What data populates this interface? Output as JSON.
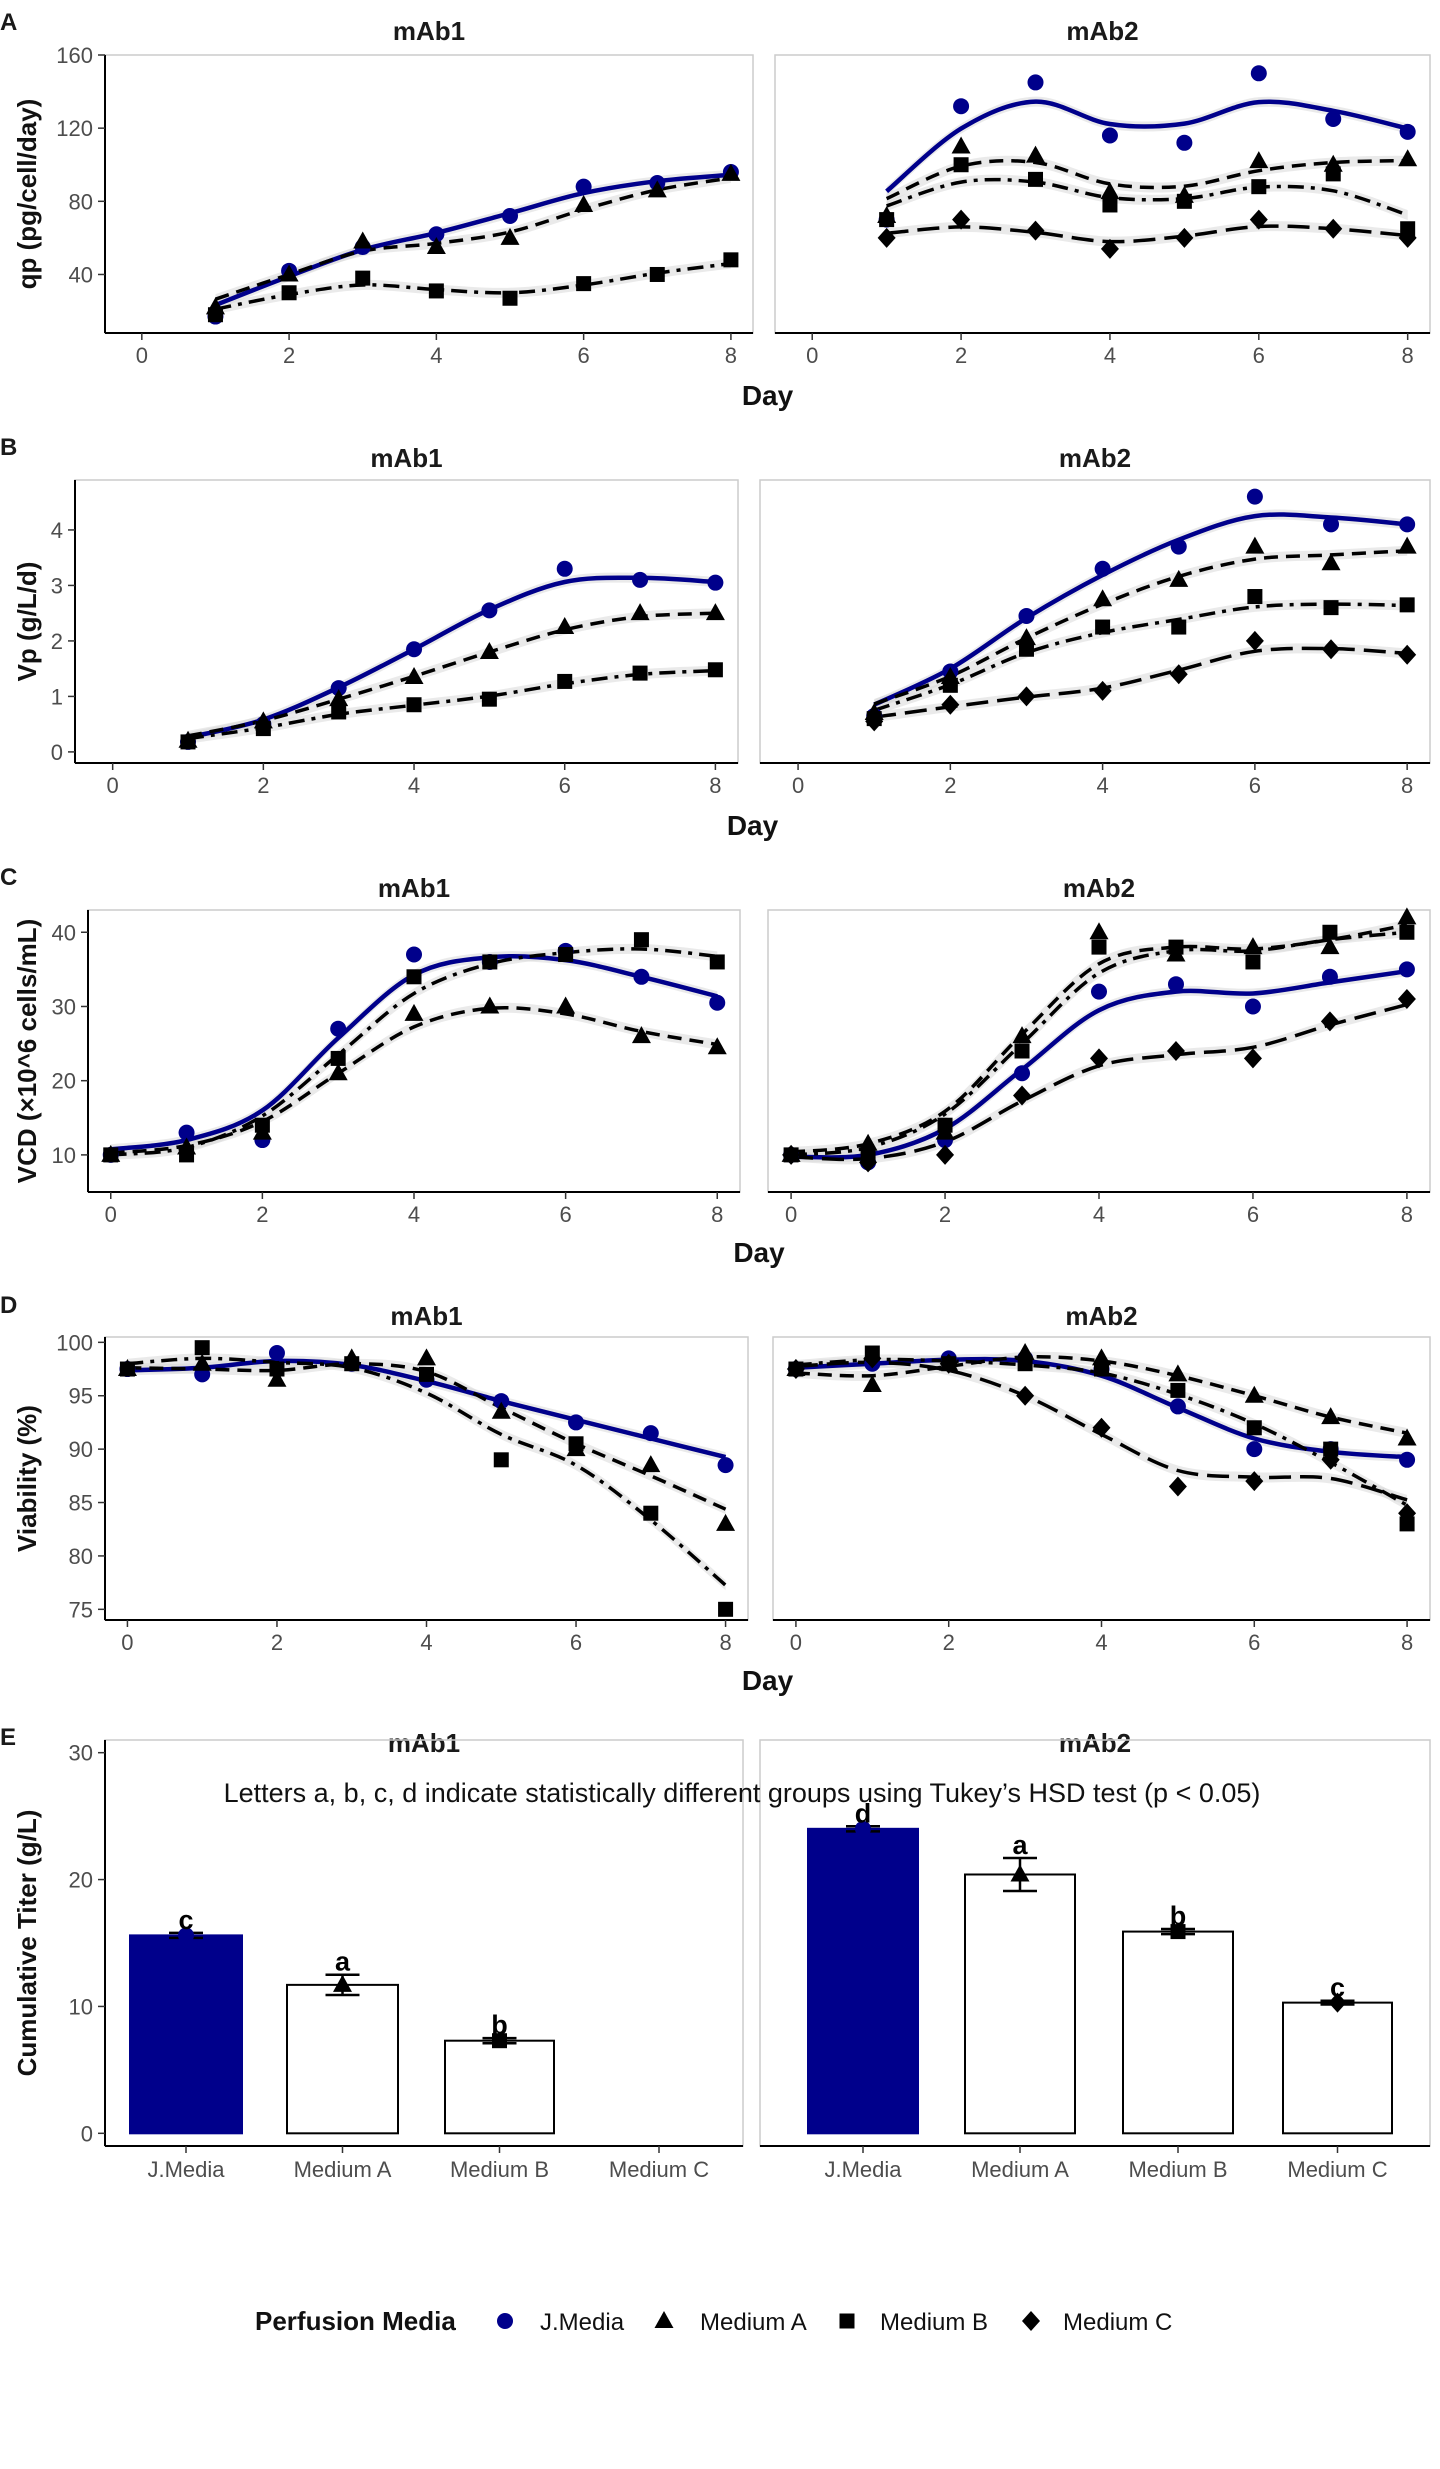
{
  "colors": {
    "jmedia": "#00008b",
    "other": "#000000",
    "ribbon": "#d9d9d9",
    "frame": "#cccccc"
  },
  "series_styles": [
    {
      "name": "J.Media",
      "shape": "circle",
      "line": "solid"
    },
    {
      "name": "Medium A",
      "shape": "triangle",
      "line": "dashed"
    },
    {
      "name": "Medium B",
      "shape": "square",
      "line": "dashdot"
    },
    {
      "name": "Medium C",
      "shape": "diamond",
      "line": "longdash"
    }
  ],
  "legend": {
    "title": "Perfusion Media",
    "items": [
      "J.Media",
      "Medium A",
      "Medium B",
      "Medium C"
    ]
  },
  "chart_data": [
    {
      "panel": "A",
      "type": "line",
      "ylabel": "qp (pg/cell/day)",
      "xlabel": "Day",
      "xlim": [
        -0.5,
        8.3
      ],
      "ylim": [
        8,
        160
      ],
      "xticks": [
        0,
        2,
        4,
        6,
        8
      ],
      "yticks": [
        40,
        80,
        120,
        160
      ],
      "facets": [
        {
          "title": "mAb1",
          "series": [
            {
              "name": "J.Media",
              "x": [
                1,
                2,
                3,
                4,
                5,
                6,
                7,
                8
              ],
              "y": [
                17,
                42,
                55,
                62,
                72,
                88,
                90,
                96
              ]
            },
            {
              "name": "Medium A",
              "x": [
                1,
                2,
                3,
                4,
                5,
                6,
                7,
                8
              ],
              "y": [
                22,
                40,
                58,
                55,
                60,
                78,
                86,
                95
              ]
            },
            {
              "name": "Medium B",
              "x": [
                1,
                2,
                3,
                4,
                5,
                6,
                7,
                8
              ],
              "y": [
                18,
                30,
                38,
                31,
                27,
                35,
                40,
                48
              ]
            }
          ]
        },
        {
          "title": "mAb2",
          "series": [
            {
              "name": "J.Media",
              "x": [
                1,
                2,
                3,
                4,
                5,
                6,
                7,
                8
              ],
              "y": [
                70,
                132,
                145,
                116,
                112,
                150,
                125,
                118
              ]
            },
            {
              "name": "Medium A",
              "x": [
                1,
                2,
                3,
                4,
                5,
                6,
                7,
                8
              ],
              "y": [
                72,
                110,
                105,
                85,
                83,
                102,
                100,
                103
              ]
            },
            {
              "name": "Medium B",
              "x": [
                1,
                2,
                3,
                4,
                5,
                6,
                7,
                8
              ],
              "y": [
                70,
                100,
                92,
                78,
                80,
                88,
                95,
                65
              ]
            },
            {
              "name": "Medium C",
              "x": [
                1,
                2,
                3,
                4,
                5,
                6,
                7,
                8
              ],
              "y": [
                60,
                70,
                64,
                54,
                60,
                70,
                65,
                60
              ]
            }
          ]
        }
      ]
    },
    {
      "panel": "B",
      "type": "line",
      "ylabel": "Vp (g/L/d)",
      "xlabel": "Day",
      "xlim": [
        -0.5,
        8.3
      ],
      "ylim": [
        -0.2,
        4.9
      ],
      "xticks": [
        0,
        2,
        4,
        6,
        8
      ],
      "yticks": [
        0,
        1,
        2,
        3,
        4
      ],
      "facets": [
        {
          "title": "mAb1",
          "series": [
            {
              "name": "J.Media",
              "x": [
                1,
                2,
                3,
                4,
                5,
                6,
                7,
                8
              ],
              "y": [
                0.18,
                0.5,
                1.15,
                1.85,
                2.55,
                3.3,
                3.1,
                3.05
              ]
            },
            {
              "name": "Medium A",
              "x": [
                1,
                2,
                3,
                4,
                5,
                6,
                7,
                8
              ],
              "y": [
                0.2,
                0.55,
                0.95,
                1.35,
                1.8,
                2.25,
                2.5,
                2.5
              ]
            },
            {
              "name": "Medium B",
              "x": [
                1,
                2,
                3,
                4,
                5,
                6,
                7,
                8
              ],
              "y": [
                0.18,
                0.42,
                0.72,
                0.85,
                0.95,
                1.27,
                1.42,
                1.48
              ]
            }
          ]
        },
        {
          "title": "mAb2",
          "series": [
            {
              "name": "J.Media",
              "x": [
                1,
                2,
                3,
                4,
                5,
                6,
                7,
                8
              ],
              "y": [
                0.65,
                1.45,
                2.45,
                3.3,
                3.7,
                4.6,
                4.1,
                4.1
              ]
            },
            {
              "name": "Medium A",
              "x": [
                1,
                2,
                3,
                4,
                5,
                6,
                7,
                8
              ],
              "y": [
                0.7,
                1.35,
                2.05,
                2.75,
                3.1,
                3.7,
                3.4,
                3.7
              ]
            },
            {
              "name": "Medium B",
              "x": [
                1,
                2,
                3,
                4,
                5,
                6,
                7,
                8
              ],
              "y": [
                0.6,
                1.2,
                1.85,
                2.25,
                2.25,
                2.8,
                2.6,
                2.65
              ]
            },
            {
              "name": "Medium C",
              "x": [
                1,
                2,
                3,
                4,
                5,
                6,
                7,
                8
              ],
              "y": [
                0.55,
                0.85,
                1.0,
                1.1,
                1.4,
                2.0,
                1.85,
                1.75
              ]
            }
          ]
        }
      ]
    },
    {
      "panel": "C",
      "type": "line",
      "ylabel": "VCD (×10^6 cells/mL)",
      "xlabel": "Day",
      "xlim": [
        -0.3,
        8.3
      ],
      "ylim": [
        5,
        43
      ],
      "xticks": [
        0,
        2,
        4,
        6,
        8
      ],
      "yticks": [
        10,
        20,
        30,
        40
      ],
      "facets": [
        {
          "title": "mAb1",
          "series": [
            {
              "name": "J.Media",
              "x": [
                0,
                1,
                2,
                3,
                4,
                5,
                6,
                7,
                8
              ],
              "y": [
                10,
                13,
                12,
                27,
                37,
                36,
                37.5,
                34,
                30.5
              ]
            },
            {
              "name": "Medium A",
              "x": [
                0,
                1,
                2,
                3,
                4,
                5,
                6,
                7,
                8
              ],
              "y": [
                10,
                11,
                13,
                21,
                29,
                30,
                30,
                26,
                24.5
              ]
            },
            {
              "name": "Medium B",
              "x": [
                0,
                1,
                2,
                3,
                4,
                5,
                6,
                7,
                8
              ],
              "y": [
                10,
                10,
                14,
                23,
                34,
                36,
                37,
                39,
                36
              ]
            }
          ]
        },
        {
          "title": "mAb2",
          "series": [
            {
              "name": "J.Media",
              "x": [
                0,
                1,
                2,
                3,
                4,
                5,
                6,
                7,
                8
              ],
              "y": [
                10,
                9,
                12,
                21,
                32,
                33,
                30,
                34,
                35
              ]
            },
            {
              "name": "Medium A",
              "x": [
                0,
                1,
                2,
                3,
                4,
                5,
                6,
                7,
                8
              ],
              "y": [
                10,
                11.5,
                13,
                26,
                40,
                37,
                38,
                38,
                42
              ]
            },
            {
              "name": "Medium B",
              "x": [
                0,
                1,
                2,
                3,
                4,
                5,
                6,
                7,
                8
              ],
              "y": [
                10,
                10,
                14,
                24,
                38,
                38,
                36,
                40,
                40
              ]
            },
            {
              "name": "Medium C",
              "x": [
                0,
                1,
                2,
                3,
                4,
                5,
                6,
                7,
                8
              ],
              "y": [
                10,
                9,
                10,
                18,
                23,
                24,
                23,
                28,
                31
              ]
            }
          ]
        }
      ]
    },
    {
      "panel": "D",
      "type": "line",
      "ylabel": "Viability (%)",
      "xlabel": "Day",
      "xlim": [
        -0.3,
        8.3
      ],
      "ylim": [
        74,
        100.5
      ],
      "xticks": [
        0,
        2,
        4,
        6,
        8
      ],
      "yticks": [
        75,
        80,
        85,
        90,
        95,
        100
      ],
      "facets": [
        {
          "title": "mAb1",
          "series": [
            {
              "name": "J.Media",
              "x": [
                0,
                1,
                2,
                3,
                4,
                5,
                6,
                7,
                8
              ],
              "y": [
                97.5,
                97,
                99,
                98,
                96.5,
                94.5,
                92.5,
                91.5,
                88.5
              ]
            },
            {
              "name": "Medium A",
              "x": [
                0,
                1,
                2,
                3,
                4,
                5,
                6,
                7,
                8
              ],
              "y": [
                97.5,
                98,
                96.5,
                98.5,
                98.5,
                93.5,
                90,
                88.5,
                83
              ]
            },
            {
              "name": "Medium B",
              "x": [
                0,
                1,
                2,
                3,
                4,
                5,
                6,
                7,
                8
              ],
              "y": [
                97.5,
                99.5,
                97.5,
                98,
                97,
                89,
                90.5,
                84,
                75
              ]
            }
          ]
        },
        {
          "title": "mAb2",
          "series": [
            {
              "name": "J.Media",
              "x": [
                0,
                1,
                2,
                3,
                4,
                5,
                6,
                7,
                8
              ],
              "y": [
                97.5,
                98,
                98.5,
                98.5,
                97.5,
                94,
                90,
                90,
                89
              ]
            },
            {
              "name": "Medium A",
              "x": [
                0,
                1,
                2,
                3,
                4,
                5,
                6,
                7,
                8
              ],
              "y": [
                97.5,
                96,
                98,
                99,
                98.5,
                97,
                95,
                93,
                91
              ]
            },
            {
              "name": "Medium B",
              "x": [
                0,
                1,
                2,
                3,
                4,
                5,
                6,
                7,
                8
              ],
              "y": [
                97.5,
                99,
                98,
                98,
                97.5,
                95.5,
                92,
                90,
                83
              ]
            },
            {
              "name": "Medium C",
              "x": [
                0,
                1,
                2,
                3,
                4,
                5,
                6,
                7,
                8
              ],
              "y": [
                97.5,
                98.5,
                98,
                95,
                92,
                86.5,
                87,
                89,
                84
              ]
            }
          ]
        }
      ]
    },
    {
      "panel": "E",
      "type": "bar",
      "ylabel": "Cumulative Titer (g/L)",
      "ylim": [
        -1,
        31
      ],
      "yticks": [
        0,
        10,
        20,
        30
      ],
      "categories": [
        "J.Media",
        "Medium A",
        "Medium B",
        "Medium C"
      ],
      "annotation": "Letters a, b, c, d indicate statistically different groups using Tukey’s HSD test (p < 0.05)",
      "facets": [
        {
          "title": "mAb1",
          "values": [
            15.6,
            11.7,
            7.3,
            null
          ],
          "errors": [
            0.2,
            0.8,
            0.2,
            null
          ],
          "letters": [
            "c",
            "a",
            "b",
            ""
          ]
        },
        {
          "title": "mAb2",
          "values": [
            24.0,
            20.4,
            15.9,
            10.3
          ],
          "errors": [
            0.2,
            1.3,
            0.2,
            0.15
          ],
          "letters": [
            "d",
            "a",
            "b",
            "c"
          ]
        }
      ]
    }
  ]
}
